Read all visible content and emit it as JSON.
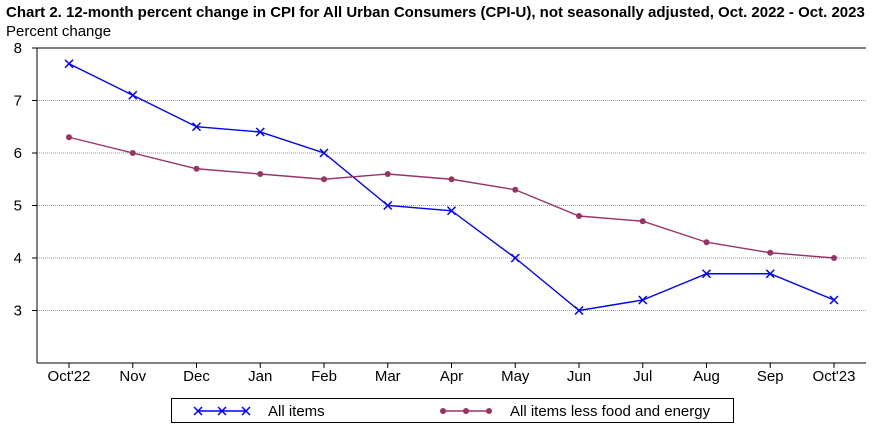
{
  "chart_data": {
    "type": "line",
    "title": "Chart 2. 12-month percent change in CPI for All Urban Consumers (CPI-U), not seasonally adjusted, Oct. 2022 - Oct. 2023",
    "ylabel": "Percent change",
    "xlabel": "",
    "categories": [
      "Oct'22",
      "Nov",
      "Dec",
      "Jan",
      "Feb",
      "Mar",
      "Apr",
      "May",
      "Jun",
      "Jul",
      "Aug",
      "Sep",
      "Oct'23"
    ],
    "ylim": [
      2,
      8
    ],
    "yticks": [
      3,
      4,
      5,
      6,
      7,
      8
    ],
    "grid": true,
    "legend_position": "bottom",
    "series": [
      {
        "name": "All items",
        "color": "#0000ff",
        "marker": "x",
        "values": [
          7.7,
          7.1,
          6.5,
          6.4,
          6.0,
          5.0,
          4.9,
          4.0,
          3.0,
          3.2,
          3.7,
          3.7,
          3.2
        ]
      },
      {
        "name": "All items less food and energy",
        "color": "#993366",
        "marker": "circle",
        "values": [
          6.3,
          6.0,
          5.7,
          5.6,
          5.5,
          5.6,
          5.5,
          5.3,
          4.8,
          4.7,
          4.3,
          4.1,
          4.0
        ]
      }
    ]
  }
}
